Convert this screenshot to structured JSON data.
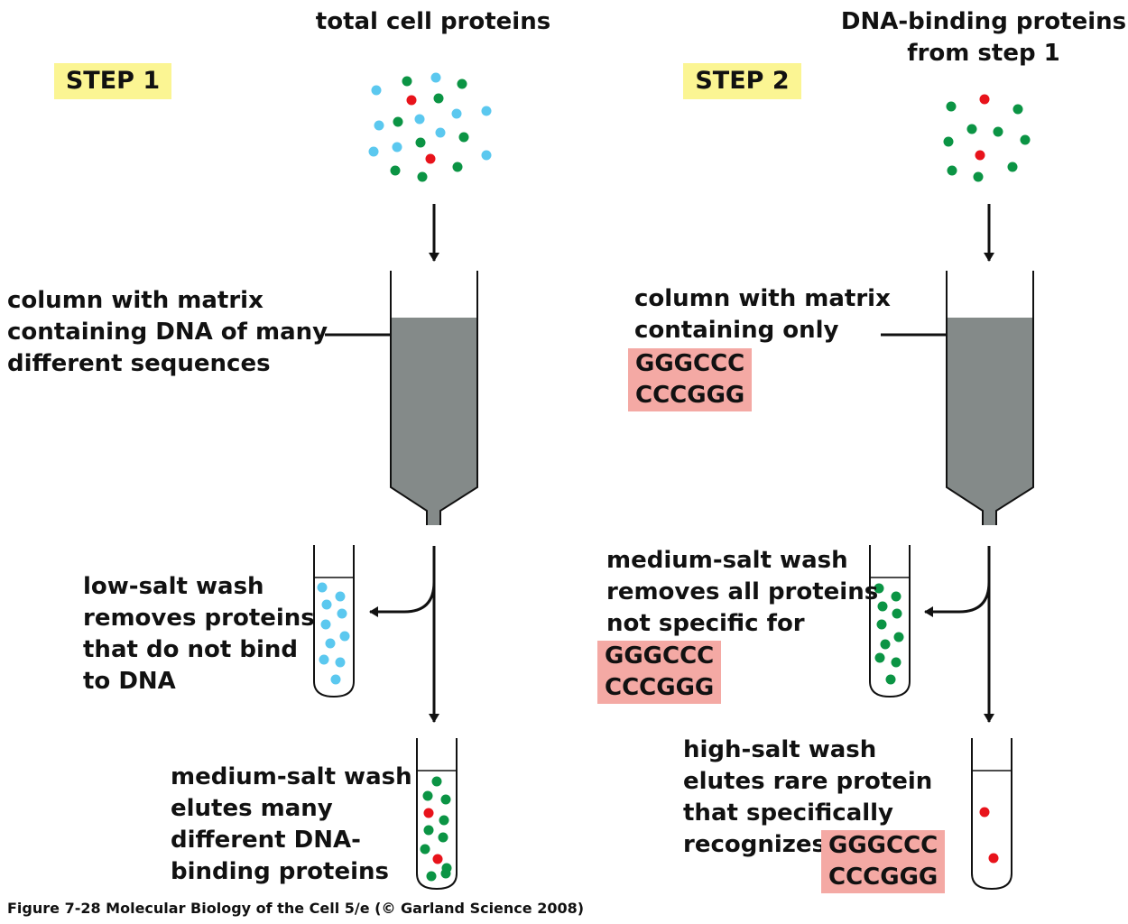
{
  "step1": {
    "badge": "STEP 1",
    "input_label": "total cell proteins",
    "column_label": [
      "column with matrix",
      "containing DNA of many",
      "different sequences"
    ],
    "low_salt_label": [
      "low-salt wash",
      "removes proteins",
      "that do not bind",
      "to DNA"
    ],
    "medium_salt_label": [
      "medium-salt wash",
      "elutes many",
      "different DNA-",
      "binding proteins"
    ]
  },
  "step2": {
    "badge": "STEP 2",
    "input_label": [
      "DNA-binding proteins",
      "from step 1"
    ],
    "column_label": [
      "column with matrix",
      "containing only"
    ],
    "column_sequence": [
      "GGGCCC",
      "CCCGGG"
    ],
    "medium_salt_label": [
      "medium-salt wash",
      "removes all proteins",
      "not specific for"
    ],
    "medium_salt_sequence": [
      "GGGCCC",
      "CCCGGG"
    ],
    "high_salt_label": [
      "high-salt wash",
      "elutes rare protein",
      "that specifically",
      "recognizes"
    ],
    "high_salt_sequence": [
      "GGGCCC",
      "CCCGGG"
    ]
  },
  "caption": "Figure 7-28  Molecular Biology of the Cell 5/e (© Garland Science 2008)",
  "colors": {
    "blue_protein": "#5bc8ef",
    "green_protein": "#0b9444",
    "red_protein": "#e8131b",
    "matrix": "#848a89",
    "step_badge": "#fbf593",
    "sequence_highlight": "#f4a9a4"
  }
}
